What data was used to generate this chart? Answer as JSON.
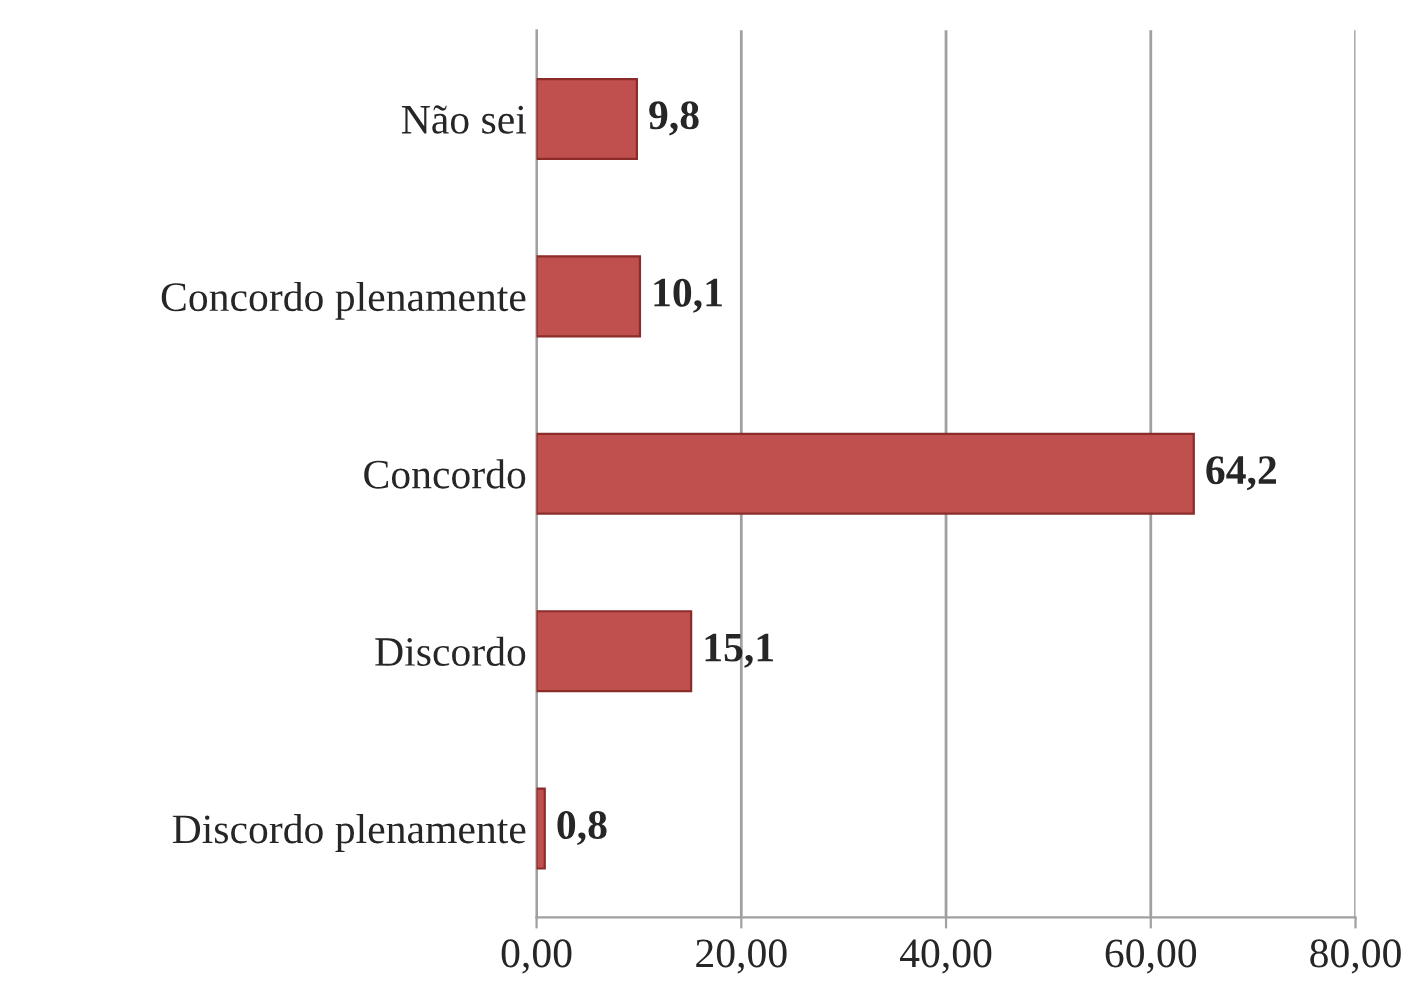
{
  "chart_data": {
    "type": "bar",
    "orientation": "horizontal",
    "categories": [
      "Não sei",
      "Concordo plenamente",
      "Concordo",
      "Discordo",
      "Discordo plenamente"
    ],
    "values": [
      9.8,
      10.1,
      64.2,
      15.1,
      0.8
    ],
    "value_labels": [
      "9,8",
      "10,1",
      "64,2",
      "15,1",
      "0,8"
    ],
    "color": "#c0504d",
    "xlim": [
      0,
      80
    ],
    "xticks": [
      {
        "value": 0,
        "label": "0,00"
      },
      {
        "value": 20,
        "label": "20,00"
      },
      {
        "value": 40,
        "label": "40,00"
      },
      {
        "value": 60,
        "label": "60,00"
      },
      {
        "value": 80,
        "label": "80,00"
      }
    ],
    "grid": "x",
    "legend": false
  }
}
